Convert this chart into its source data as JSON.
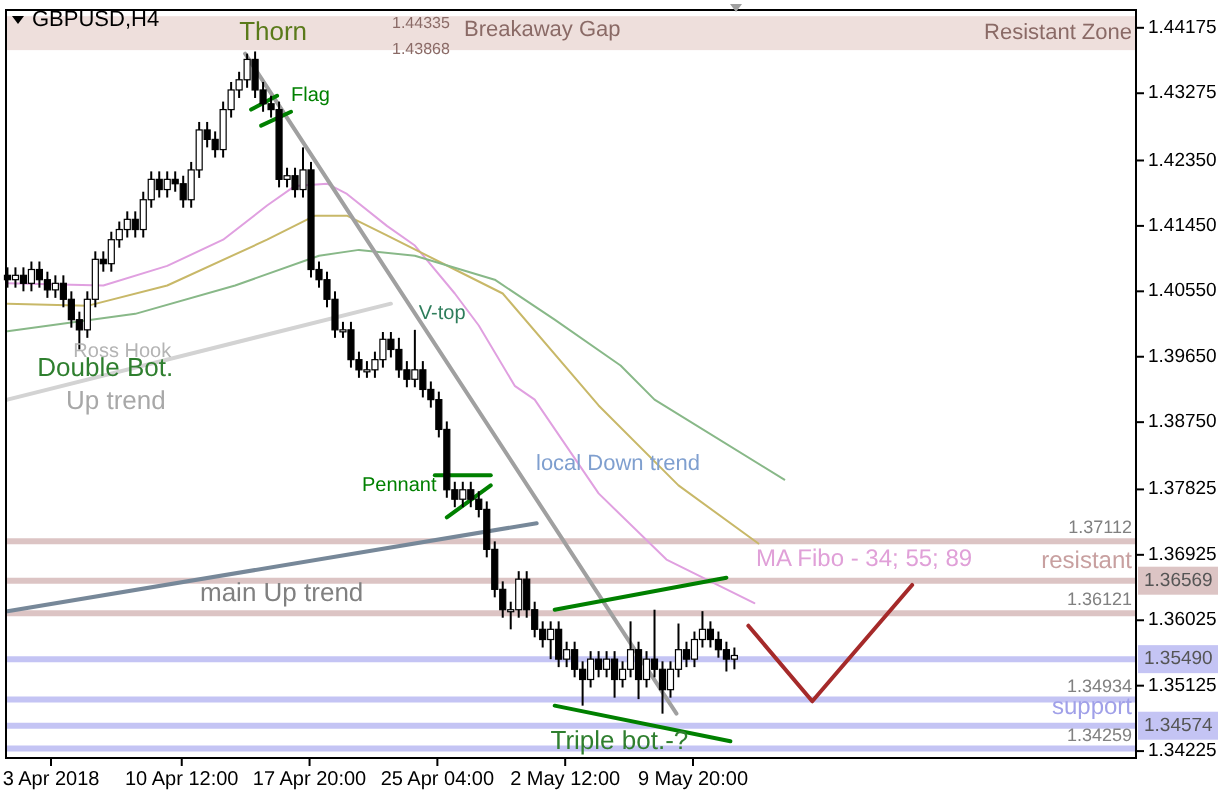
{
  "chart_data": {
    "type": "candlestick",
    "title": "GBPUSD,H4",
    "x": [
      "2018-03-31T12:00",
      "2018-03-31T23:00",
      "2018-04-01T10:00",
      "2018-04-01T21:00",
      "2018-04-02T08:00",
      "2018-04-02T19:00",
      "2018-04-03T06:00",
      "2018-04-03T17:00",
      "2018-04-04T04:00",
      "2018-04-04T15:00",
      "2018-04-05T02:00",
      "2018-04-05T13:00",
      "2018-04-06T00:00",
      "2018-04-06T11:00",
      "2018-04-06T22:00",
      "2018-04-07T09:00",
      "2018-04-07T20:00",
      "2018-04-08T07:00",
      "2018-04-08T18:00",
      "2018-04-09T05:00",
      "2018-04-09T16:00",
      "2018-04-10T03:00",
      "2018-04-10T14:00",
      "2018-04-11T01:00",
      "2018-04-11T12:00",
      "2018-04-11T23:00",
      "2018-04-12T10:00",
      "2018-04-12T21:00",
      "2018-04-13T08:00",
      "2018-04-13T19:00",
      "2018-04-14T06:00",
      "2018-04-14T17:00",
      "2018-04-15T04:00",
      "2018-04-15T15:00",
      "2018-04-16T02:00",
      "2018-04-16T13:00",
      "2018-04-17T00:00",
      "2018-04-17T11:00",
      "2018-04-17T22:00",
      "2018-04-18T09:00",
      "2018-04-18T20:00",
      "2018-04-19T07:00",
      "2018-04-19T18:00",
      "2018-04-20T05:00",
      "2018-04-20T16:00",
      "2018-04-21T03:00",
      "2018-04-21T14:00",
      "2018-04-22T01:00",
      "2018-04-22T12:00",
      "2018-04-22T23:00",
      "2018-04-23T10:00",
      "2018-04-23T21:00",
      "2018-04-24T08:00",
      "2018-04-24T19:00",
      "2018-04-25T06:00",
      "2018-04-25T17:00",
      "2018-04-26T04:00",
      "2018-04-26T15:00",
      "2018-04-27T02:00",
      "2018-04-27T13:00",
      "2018-04-28T00:00",
      "2018-04-28T11:00",
      "2018-04-28T22:00",
      "2018-04-29T09:00",
      "2018-04-29T20:00",
      "2018-04-30T07:00",
      "2018-04-30T18:00",
      "2018-05-01T05:00",
      "2018-05-01T16:00",
      "2018-05-02T03:00",
      "2018-05-02T14:00",
      "2018-05-03T01:00",
      "2018-05-03T12:00",
      "2018-05-03T23:00",
      "2018-05-04T10:00",
      "2018-05-04T21:00",
      "2018-05-05T08:00",
      "2018-05-05T19:00",
      "2018-05-06T06:00",
      "2018-05-06T17:00",
      "2018-05-07T04:00",
      "2018-05-07T15:00",
      "2018-05-08T02:00",
      "2018-05-08T13:00",
      "2018-05-09T00:00",
      "2018-05-09T11:00",
      "2018-05-09T22:00",
      "2018-05-10T09:00",
      "2018-05-10T20:00",
      "2018-05-11T07:00",
      "2018-05-11T18:00",
      "2018-05-12T05:00"
    ],
    "ohlc": [
      [
        1.4077,
        1.4088,
        1.406,
        1.4071
      ],
      [
        1.4071,
        1.4088,
        1.406,
        1.4077
      ],
      [
        1.4077,
        1.4088,
        1.4055,
        1.4066
      ],
      [
        1.4066,
        1.4096,
        1.4055,
        1.4085
      ],
      [
        1.4085,
        1.4096,
        1.406,
        1.4071
      ],
      [
        1.4071,
        1.4082,
        1.4046,
        1.4057
      ],
      [
        1.4057,
        1.4077,
        1.4046,
        1.4066
      ],
      [
        1.4066,
        1.4077,
        1.4033,
        1.4044
      ],
      [
        1.4044,
        1.4055,
        1.4005,
        1.4016
      ],
      [
        1.4016,
        1.4027,
        1.3975,
        1.4002
      ],
      [
        1.4002,
        1.4055,
        1.3991,
        1.4044
      ],
      [
        1.4044,
        1.411,
        1.4033,
        1.4099
      ],
      [
        1.4099,
        1.411,
        1.4082,
        1.4093
      ],
      [
        1.4093,
        1.4137,
        1.4082,
        1.4126
      ],
      [
        1.4126,
        1.4151,
        1.4115,
        1.414
      ],
      [
        1.414,
        1.4165,
        1.4129,
        1.4154
      ],
      [
        1.4154,
        1.4165,
        1.4129,
        1.414
      ],
      [
        1.414,
        1.4192,
        1.4129,
        1.4181
      ],
      [
        1.4181,
        1.422,
        1.417,
        1.4209
      ],
      [
        1.4209,
        1.422,
        1.4184,
        1.4195
      ],
      [
        1.4195,
        1.422,
        1.4184,
        1.4209
      ],
      [
        1.4209,
        1.422,
        1.4192,
        1.4203
      ],
      [
        1.4203,
        1.4214,
        1.417,
        1.4181
      ],
      [
        1.4181,
        1.4233,
        1.417,
        1.4222
      ],
      [
        1.4222,
        1.4288,
        1.4211,
        1.4277
      ],
      [
        1.4277,
        1.4288,
        1.4253,
        1.4264
      ],
      [
        1.4264,
        1.4275,
        1.4239,
        1.425
      ],
      [
        1.425,
        1.4316,
        1.4239,
        1.4305
      ],
      [
        1.4305,
        1.4343,
        1.4294,
        1.4332
      ],
      [
        1.4332,
        1.4357,
        1.4321,
        1.4346
      ],
      [
        1.4346,
        1.4382,
        1.4335,
        1.4374
      ],
      [
        1.4374,
        1.4385,
        1.4321,
        1.4332
      ],
      [
        1.4332,
        1.4343,
        1.4302,
        1.4313
      ],
      [
        1.4313,
        1.4324,
        1.4294,
        1.4305
      ],
      [
        1.4305,
        1.4316,
        1.4198,
        1.4209
      ],
      [
        1.4209,
        1.4225,
        1.4198,
        1.4214
      ],
      [
        1.4214,
        1.4225,
        1.4184,
        1.4195
      ],
      [
        1.4195,
        1.4253,
        1.4184,
        1.4222
      ],
      [
        1.4222,
        1.4233,
        1.4074,
        1.4085
      ],
      [
        1.4085,
        1.4096,
        1.406,
        1.4071
      ],
      [
        1.4071,
        1.4082,
        1.4033,
        1.4044
      ],
      [
        1.4044,
        1.4055,
        1.3991,
        1.4002
      ],
      [
        1.4002,
        1.4013,
        1.3991,
        1.4002
      ],
      [
        1.4002,
        1.4013,
        1.395,
        1.3961
      ],
      [
        1.3961,
        1.3972,
        1.3936,
        1.3947
      ],
      [
        1.3947,
        1.3959,
        1.3936,
        1.3947
      ],
      [
        1.3947,
        1.3972,
        1.3936,
        1.3961
      ],
      [
        1.3961,
        1.3999,
        1.395,
        1.3989
      ],
      [
        1.3989,
        1.3999,
        1.3964,
        1.3975
      ],
      [
        1.3975,
        1.3991,
        1.3936,
        1.3947
      ],
      [
        1.3947,
        1.3959,
        1.3923,
        1.3934
      ],
      [
        1.3934,
        1.4002,
        1.3923,
        1.3947
      ],
      [
        1.3947,
        1.3959,
        1.3909,
        1.392
      ],
      [
        1.392,
        1.3931,
        1.3895,
        1.3906
      ],
      [
        1.3906,
        1.3917,
        1.3854,
        1.3865
      ],
      [
        1.3865,
        1.3876,
        1.3771,
        1.3782
      ],
      [
        1.3782,
        1.3793,
        1.3758,
        1.3769
      ],
      [
        1.3769,
        1.3793,
        1.3758,
        1.3782
      ],
      [
        1.3782,
        1.3793,
        1.3758,
        1.3769
      ],
      [
        1.3769,
        1.378,
        1.3744,
        1.3755
      ],
      [
        1.3755,
        1.3766,
        1.3689,
        1.37
      ],
      [
        1.37,
        1.3711,
        1.3634,
        1.3645
      ],
      [
        1.3645,
        1.3656,
        1.3606,
        1.3617
      ],
      [
        1.3617,
        1.3628,
        1.359,
        1.3617
      ],
      [
        1.3617,
        1.367,
        1.3606,
        1.3659
      ],
      [
        1.3659,
        1.367,
        1.3606,
        1.3617
      ],
      [
        1.3617,
        1.3628,
        1.3579,
        1.359
      ],
      [
        1.359,
        1.3601,
        1.3565,
        1.3576
      ],
      [
        1.3576,
        1.3601,
        1.3549,
        1.359
      ],
      [
        1.359,
        1.3601,
        1.3538,
        1.3549
      ],
      [
        1.3549,
        1.3573,
        1.3538,
        1.3562
      ],
      [
        1.3562,
        1.3573,
        1.3524,
        1.3535
      ],
      [
        1.3535,
        1.3546,
        1.3485,
        1.3521
      ],
      [
        1.3521,
        1.356,
        1.351,
        1.3549
      ],
      [
        1.3549,
        1.356,
        1.3524,
        1.3535
      ],
      [
        1.3535,
        1.356,
        1.3524,
        1.3549
      ],
      [
        1.3549,
        1.356,
        1.3496,
        1.3521
      ],
      [
        1.3521,
        1.3546,
        1.351,
        1.3535
      ],
      [
        1.3535,
        1.3601,
        1.3524,
        1.3562
      ],
      [
        1.3562,
        1.3573,
        1.3494,
        1.3521
      ],
      [
        1.3521,
        1.356,
        1.351,
        1.3549
      ],
      [
        1.3549,
        1.3617,
        1.3524,
        1.3535
      ],
      [
        1.3535,
        1.3546,
        1.3474,
        1.3507
      ],
      [
        1.3507,
        1.3546,
        1.3496,
        1.3535
      ],
      [
        1.3535,
        1.3598,
        1.3524,
        1.3562
      ],
      [
        1.3562,
        1.3573,
        1.3538,
        1.3549
      ],
      [
        1.3549,
        1.3587,
        1.3538,
        1.3576
      ],
      [
        1.3576,
        1.3615,
        1.3565,
        1.359
      ],
      [
        1.359,
        1.3601,
        1.3565,
        1.3576
      ],
      [
        1.3576,
        1.3587,
        1.3551,
        1.3562
      ],
      [
        1.3562,
        1.3573,
        1.3532,
        1.3549
      ],
      [
        1.3549,
        1.3565,
        1.3535,
        1.3554
      ]
    ],
    "series": [
      {
        "type": "line",
        "color": "#e0a0e0",
        "x": [
          "2018-03-31T12:00",
          "2018-04-06T00:00",
          "2018-04-09T16:00",
          "2018-04-12T21:00",
          "2018-04-15T09:30",
          "2018-04-17T00:00",
          "2018-04-18T20:00",
          "2018-04-19T23:30",
          "2018-04-22T06:30",
          "2018-04-23T21:00",
          "2018-04-26T04:00",
          "2018-04-27T13:00",
          "2018-04-29T14:30",
          "2018-04-30T18:00",
          "2018-05-04T10:00",
          "2018-05-08T07:30",
          "2018-05-13T08:30"
        ],
        "values": [
          1.4066,
          1.4063,
          1.409,
          1.4126,
          1.4173,
          1.42,
          1.4203,
          1.4189,
          1.4145,
          1.4118,
          1.4052,
          1.4008,
          1.3925,
          1.3906,
          1.3777,
          1.3686,
          1.3626
        ]
      },
      {
        "type": "line",
        "color": "#c8b868",
        "x": [
          "2018-03-31T12:00",
          "2018-04-05T02:00",
          "2018-04-09T16:00",
          "2018-04-15T09:30",
          "2018-04-18T03:30",
          "2018-04-19T23:30",
          "2018-04-22T06:30",
          "2018-04-26T04:00",
          "2018-04-28T22:00",
          "2018-05-04T10:00",
          "2018-05-09T00:00",
          "2018-05-13T14:00"
        ],
        "values": [
          1.4038,
          1.4035,
          1.4063,
          1.4126,
          1.4159,
          1.4159,
          1.4132,
          1.4085,
          1.4052,
          1.3898,
          1.3788,
          1.3708
        ]
      },
      {
        "type": "line",
        "color": "#88b888",
        "x": [
          "2018-03-31T12:00",
          "2018-04-07T20:00",
          "2018-04-13T13:30",
          "2018-04-18T09:00",
          "2018-04-20T16:00",
          "2018-04-23T21:00",
          "2018-04-28T11:00",
          "2018-05-01T21:30",
          "2018-05-05T16:15",
          "2018-05-07T15:00",
          "2018-05-15T01:45"
        ],
        "values": [
          1.4,
          1.4024,
          1.4063,
          1.4104,
          1.4112,
          1.4104,
          1.4071,
          1.4016,
          1.3953,
          1.3906,
          1.3796
        ]
      },
      {
        "type": "line",
        "color": "#a0a0a0",
        "x": [
          "2018-04-14T03:15",
          "2018-05-08T21:15"
        ],
        "values": [
          1.4382,
          1.3474
        ]
      },
      {
        "type": "line",
        "color": "#d3d3d3",
        "x": [
          "2018-03-31T12:00",
          "2018-04-22T12:00"
        ],
        "values": [
          1.3906,
          1.4038
        ]
      },
      {
        "type": "line",
        "color": "#778899",
        "x": [
          "2018-03-31T12:00",
          "2018-04-30T20:45"
        ],
        "values": [
          1.3615,
          1.3736
        ]
      },
      {
        "type": "line",
        "color": "#008000",
        "x": [
          "2018-04-14T11:30",
          "2018-04-15T23:15"
        ],
        "values": [
          1.4305,
          1.4324
        ]
      },
      {
        "type": "line",
        "color": "#008000",
        "x": [
          "2018-04-15T01:15",
          "2018-04-16T18:30"
        ],
        "values": [
          1.4283,
          1.4302
        ]
      },
      {
        "type": "line",
        "color": "#008000",
        "x": [
          "2018-04-25T00:30",
          "2018-04-28T05:30"
        ],
        "values": [
          1.3802,
          1.3802
        ]
      },
      {
        "type": "line",
        "color": "#008000",
        "x": [
          "2018-04-25T17:00",
          "2018-04-28T05:30"
        ],
        "values": [
          1.3744,
          1.3788
        ]
      },
      {
        "type": "line",
        "color": "#008000",
        "x": [
          "2018-05-01T21:30",
          "2018-05-11T18:00"
        ],
        "values": [
          1.3617,
          1.3661
        ]
      },
      {
        "type": "line",
        "color": "#008000",
        "x": [
          "2018-05-01T21:30",
          "2018-05-11T23:30"
        ],
        "values": [
          1.3485,
          1.3436
        ]
      },
      {
        "type": "line",
        "color": "#a52a2a",
        "x": [
          "2018-05-13T00:15",
          "2018-05-16T16:15",
          "2018-05-22T09:45"
        ],
        "values": [
          1.3595,
          1.3491,
          1.3651
        ]
      }
    ],
    "xlim": [
      "2018-03-31T10:00",
      "2018-06-04T06:00"
    ],
    "xticks": [
      {
        "value": "2018-04-03T00:00",
        "label": "3 Apr 2018"
      },
      {
        "value": "2018-04-10T12:00",
        "label": "10 Apr 12:00"
      },
      {
        "value": "2018-04-17T20:00",
        "label": "17 Apr 20:00"
      },
      {
        "value": "2018-04-25T04:00",
        "label": "25 Apr 04:00"
      },
      {
        "value": "2018-05-02T12:00",
        "label": "2 May 12:00"
      },
      {
        "value": "2018-05-09T20:00",
        "label": "9 May 20:00"
      }
    ],
    "ylim": [
      1.3413,
      1.4442
    ],
    "yticks": [
      1.44175,
      1.43275,
      {
        "value": 1.4235,
        "label": "1.42350"
      },
      {
        "value": 1.4145,
        "label": "1.41450"
      },
      {
        "value": 1.4055,
        "label": "1.40550"
      },
      {
        "value": 1.3965,
        "label": "1.39650"
      },
      {
        "value": 1.3875,
        "label": "1.38750"
      },
      1.37825,
      1.36925,
      1.36025,
      1.35125,
      1.34225
    ],
    "bands": [
      {
        "axis": "y",
        "from": 1.43868,
        "to": 1.44335,
        "label": "Resistant Zone",
        "color": "#eedfdc"
      }
    ],
    "ref_lines": [
      {
        "axis": "y",
        "value": 1.37112,
        "label": "1.37112",
        "color": "#dcc4c4"
      },
      {
        "axis": "y",
        "value": 1.36569,
        "label": "1.36569",
        "color": "#dcc4c4"
      },
      {
        "axis": "y",
        "value": 1.36121,
        "label": "1.36121",
        "color": "#dcc4c4"
      },
      {
        "axis": "y",
        "value": 1.3549,
        "label": "1.35490",
        "color": "#c4c4f4"
      },
      {
        "axis": "y",
        "value": 1.34934,
        "label": "1.34934",
        "color": "#c4c4f4"
      },
      {
        "axis": "y",
        "value": 1.34574,
        "label": "1.34574",
        "color": "#c4c4f4"
      },
      {
        "axis": "y",
        "value": 1.34259,
        "label": "1.34259",
        "color": "#c4c4f4"
      }
    ],
    "annotations": [
      {
        "text": "Thorn",
        "x": "2018-04-14T06:00",
        "y": 1.4382
      },
      {
        "text": "Flag",
        "x": "2018-04-15T23:15",
        "y": 1.4324
      },
      {
        "text": "V-top",
        "x": "2018-04-23T21:00",
        "y": 1.4002
      },
      {
        "text": "Ross Hook",
        "x": "2018-04-04T15:00",
        "y": 1.3975
      },
      {
        "text": "Double Bot.",
        "x": "2018-04-04T15:00",
        "y": 1.3975
      },
      "Up trend",
      "Pennant",
      "local Down trend",
      "main Up trend",
      "MA Fibo - 34; 55; 89",
      "resistant",
      "support",
      {
        "text": "Triple bot.-?",
        "x": "2018-05-08T02:00",
        "y": 1.3474
      },
      "Breakaway Gap",
      {
        "text": "1.44335",
        "y": 1.44335
      },
      {
        "text": "1.43868",
        "y": 1.43868
      }
    ]
  }
}
